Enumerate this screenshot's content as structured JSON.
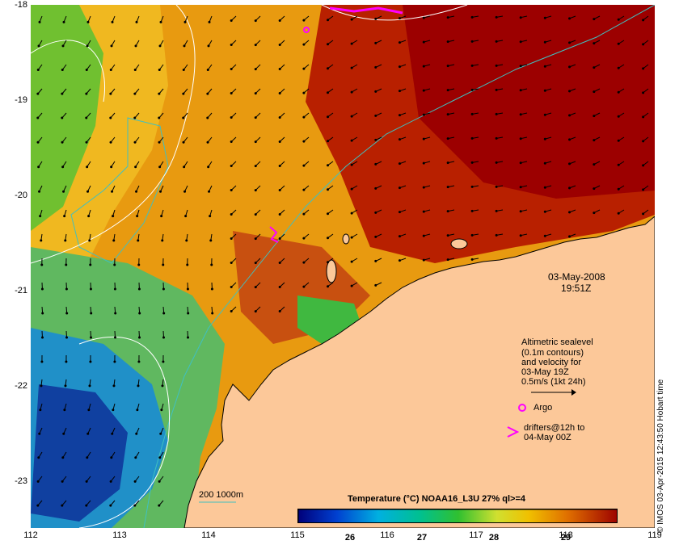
{
  "map": {
    "timestamp_date": "03-May-2008",
    "timestamp_time": "19:51Z",
    "lat_labels": [
      "-18",
      "-19",
      "-20",
      "-21",
      "-22",
      "-23"
    ],
    "lon_labels": [
      "112",
      "113",
      "114",
      "115",
      "116",
      "117",
      "118",
      "119"
    ],
    "colorbar_title": "Temperature (°C) NOAA16_L3U 27% ql>=4",
    "colorbar_ticks": [
      "26",
      "27",
      "28",
      "29"
    ],
    "depth_legend": "200  1000m",
    "copyright": "© IMOS 03-Apr-2015 12:43:50 Hobart time",
    "key": {
      "line1": "Altimetric sealevel",
      "line2": "(0.1m contours)",
      "line3": "and velocity for",
      "line4": "03-May 19Z",
      "line5": "0.5m/s (1kt 24h)",
      "argo_label": "Argo",
      "drifters_line1": "drifters@12h to",
      "drifters_line2": "04-May 00Z"
    },
    "colors": {
      "land": "#fcc899",
      "coast": "#000000",
      "bathy": "#40c0c0",
      "contour": "#ffffff",
      "argo": "#ff00ff",
      "sst_hot": "#9c0000",
      "sst_warm": "#e08000",
      "sst_mid": "#f0b000",
      "sst_green": "#40c040",
      "sst_cool": "#0040a0"
    }
  }
}
